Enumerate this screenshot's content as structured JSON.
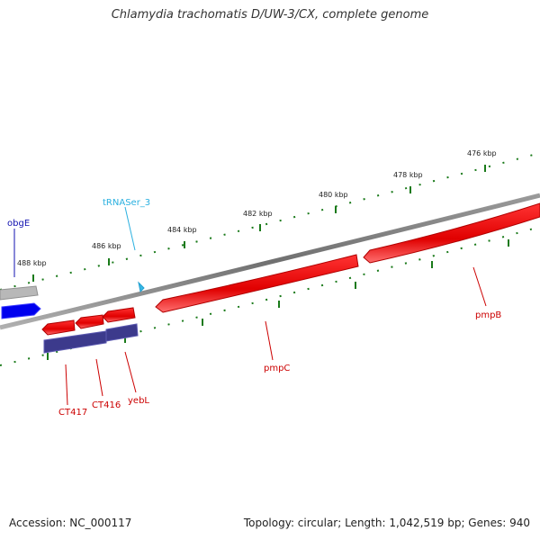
{
  "title": "Chlamydia trachomatis D/UW-3/CX, complete genome",
  "footer": {
    "accession": "Accession: NC_000117",
    "summary": "Topology: circular; Length: 1,042,519 bp; Genes: 940"
  },
  "ruler_labels": [
    "476 kbp",
    "478 kbp",
    "480 kbp",
    "482 kbp",
    "484 kbp",
    "486 kbp",
    "488 kbp"
  ],
  "gene_labels": {
    "obgE": "obgE",
    "tRNASer_3": "tRNASer_3",
    "CT417": "CT417",
    "CT416": "CT416",
    "yebL": "yebL",
    "pmpC": "pmpC",
    "pmpB": "pmpB"
  },
  "colors": {
    "backbone": "#808080",
    "ruler_ticks": "#1a7a1a",
    "cds_red": "#e00000",
    "cds_blue": "#0000ee",
    "cds_navy": "#3c3a8c",
    "trna": "#39b8e6",
    "label_red": "#cc0000",
    "label_blue": "#1010b0",
    "label_cyan": "#2ab0e0"
  }
}
